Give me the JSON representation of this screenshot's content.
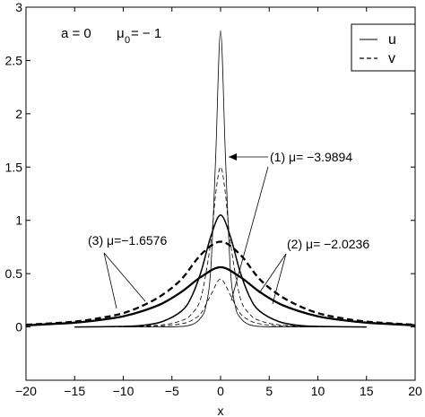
{
  "chart_data": {
    "type": "line",
    "title": "",
    "xlabel": "x",
    "ylabel": "",
    "xlim": [
      -20,
      20
    ],
    "ylim": [
      -0.5,
      3.0
    ],
    "x_ticks": [
      -20,
      -15,
      -10,
      -5,
      0,
      5,
      10,
      15,
      20
    ],
    "x_tick_labels": [
      "−20",
      "−15",
      "−10",
      "−5",
      "0",
      "5",
      "10",
      "15",
      "20"
    ],
    "y_ticks": [
      0,
      0.5,
      1,
      1.5,
      2,
      2.5,
      3
    ],
    "y_tick_labels": [
      "0",
      "0.5",
      "1",
      "1.5",
      "2",
      "2.5",
      "3"
    ],
    "grid": false,
    "legend": {
      "placement": "top-right",
      "entries": [
        {
          "label": "u",
          "style": "solid"
        },
        {
          "label": "v",
          "style": "dashed"
        }
      ]
    },
    "params_text": {
      "a": "a = 0",
      "mu0_prefix": "μ",
      "mu0_sub": "0",
      "mu0_suffix": " = − 1"
    },
    "annotations": [
      {
        "id": "mode1",
        "text": "(1) μ= −3.9894"
      },
      {
        "id": "mode2",
        "text": "(2) μ= −2.0236"
      },
      {
        "id": "mode3",
        "text": "(3) μ=−1.6576"
      }
    ],
    "series": [
      {
        "mode": 1,
        "component": "u",
        "style": "solid",
        "weight": "thin",
        "x": [
          -10,
          -5,
          -3,
          -2,
          -1.5,
          -1,
          -0.5,
          0,
          0.5,
          1,
          1.5,
          2,
          3,
          5,
          10
        ],
        "y": [
          0,
          0.001,
          0.02,
          0.09,
          0.2,
          0.55,
          1.6,
          2.78,
          1.6,
          0.55,
          0.2,
          0.09,
          0.02,
          0.001,
          0
        ]
      },
      {
        "mode": 1,
        "component": "v",
        "style": "dashed",
        "weight": "thin",
        "x": [
          -15,
          -10,
          -6,
          -4,
          -3,
          -2,
          -1,
          -0.5,
          0,
          0.5,
          1,
          2,
          3,
          4,
          6,
          10,
          15
        ],
        "y": [
          0,
          0.002,
          0.02,
          0.06,
          0.12,
          0.28,
          0.8,
          1.25,
          1.5,
          1.25,
          0.8,
          0.28,
          0.12,
          0.06,
          0.02,
          0.002,
          0
        ]
      },
      {
        "mode": 2,
        "component": "u",
        "style": "solid",
        "weight": "medium",
        "x": [
          -15,
          -10,
          -8,
          -6,
          -4,
          -3,
          -2,
          -1,
          0,
          1,
          2,
          3,
          4,
          6,
          8,
          10,
          15
        ],
        "y": [
          0,
          0.005,
          0.015,
          0.05,
          0.15,
          0.28,
          0.52,
          0.85,
          1.05,
          0.85,
          0.52,
          0.28,
          0.15,
          0.05,
          0.015,
          0.005,
          0
        ]
      },
      {
        "mode": 2,
        "component": "v",
        "style": "dashed",
        "weight": "thin",
        "x": [
          -15,
          -10,
          -6,
          -4,
          -3,
          -2,
          -1,
          0,
          1,
          2,
          3,
          4,
          6,
          10,
          15
        ],
        "y": [
          0,
          0.001,
          0.01,
          0.03,
          0.06,
          0.13,
          0.3,
          0.45,
          0.3,
          0.13,
          0.06,
          0.03,
          0.01,
          0.001,
          0
        ]
      },
      {
        "mode": 3,
        "component": "u",
        "style": "solid",
        "weight": "bold",
        "x": [
          -20,
          -15,
          -12,
          -10,
          -8,
          -6,
          -4,
          -2,
          0,
          2,
          4,
          6,
          8,
          10,
          12,
          15,
          20
        ],
        "y": [
          0.015,
          0.04,
          0.07,
          0.1,
          0.15,
          0.22,
          0.33,
          0.47,
          0.56,
          0.47,
          0.33,
          0.22,
          0.15,
          0.1,
          0.07,
          0.04,
          0.015
        ]
      },
      {
        "mode": 3,
        "component": "v",
        "style": "dashed",
        "weight": "bold",
        "x": [
          -20,
          -15,
          -12,
          -10,
          -8,
          -6,
          -4,
          -2,
          0,
          2,
          4,
          6,
          8,
          10,
          12,
          15,
          20
        ],
        "y": [
          0.02,
          0.05,
          0.09,
          0.13,
          0.2,
          0.3,
          0.45,
          0.68,
          0.8,
          0.68,
          0.45,
          0.3,
          0.2,
          0.13,
          0.09,
          0.05,
          0.02
        ]
      }
    ]
  }
}
